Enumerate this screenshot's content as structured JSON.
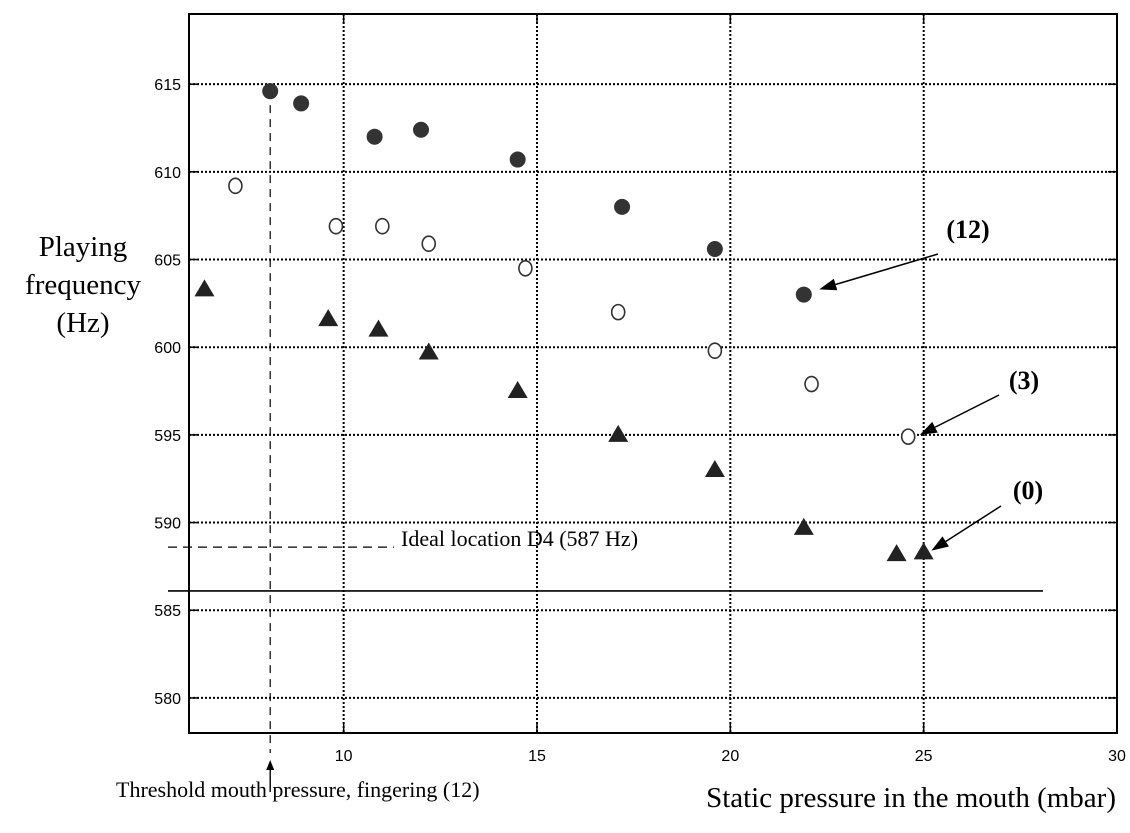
{
  "chart_data": {
    "type": "scatter",
    "xlabel": "Static pressure in the mouth (mbar)",
    "ylabel": [
      "Playing",
      "frequency",
      "(Hz)"
    ],
    "xlim": [
      6,
      30
    ],
    "ylim": [
      578,
      619
    ],
    "xticks": [
      10,
      15,
      20,
      25,
      30
    ],
    "yticks": [
      580,
      585,
      590,
      595,
      600,
      605,
      610,
      615
    ],
    "grid": true,
    "series": [
      {
        "label": "(12)",
        "marker": "filled-circle",
        "points": [
          [
            8.1,
            614.6
          ],
          [
            8.9,
            613.9
          ],
          [
            10.8,
            612.0
          ],
          [
            12.0,
            612.4
          ],
          [
            14.5,
            610.7
          ],
          [
            17.2,
            608.0
          ],
          [
            19.6,
            605.6
          ],
          [
            21.9,
            603.0
          ]
        ]
      },
      {
        "label": "(3)",
        "marker": "open-circle",
        "points": [
          [
            7.2,
            609.2
          ],
          [
            9.8,
            606.9
          ],
          [
            11.0,
            606.9
          ],
          [
            12.2,
            605.9
          ],
          [
            14.7,
            604.5
          ],
          [
            17.1,
            602.0
          ],
          [
            19.6,
            599.8
          ],
          [
            22.1,
            597.9
          ],
          [
            24.6,
            594.9
          ]
        ]
      },
      {
        "label": "(0)",
        "marker": "filled-triangle",
        "points": [
          [
            6.4,
            603.3
          ],
          [
            9.6,
            601.6
          ],
          [
            10.9,
            601.0
          ],
          [
            12.2,
            599.7
          ],
          [
            14.5,
            597.5
          ],
          [
            17.1,
            595.0
          ],
          [
            19.6,
            593.0
          ],
          [
            21.9,
            589.7
          ],
          [
            24.3,
            588.2
          ],
          [
            25.0,
            588.3
          ]
        ]
      }
    ],
    "reference_lines": {
      "ideal_line_y": 586.1,
      "ideal_label": "Ideal location D4 (587 Hz)",
      "ideal_label_dash_y": 588.6,
      "threshold_x": 8.1,
      "threshold_label": "Threshold mouth pressure, fingering (12)"
    },
    "annotations": [
      {
        "text": "(12)",
        "arrow_to": [
          22.3,
          603.3
        ]
      },
      {
        "text": "(3)",
        "arrow_to": [
          24.9,
          595.0
        ]
      },
      {
        "text": "(0)",
        "arrow_to": [
          25.2,
          588.4
        ]
      }
    ]
  }
}
